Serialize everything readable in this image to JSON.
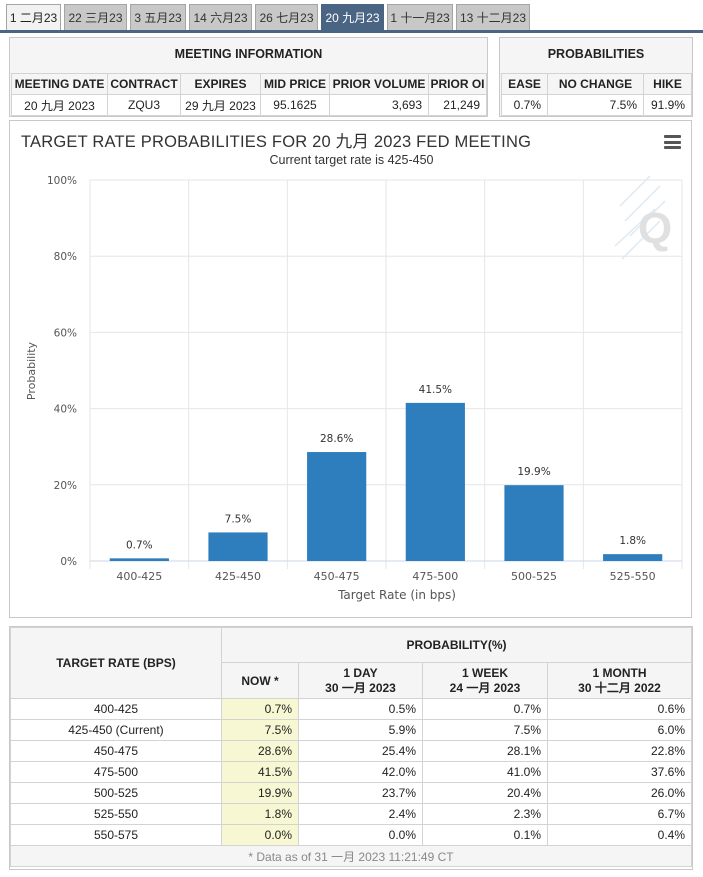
{
  "tabs": [
    {
      "label": "1 二月23"
    },
    {
      "label": "22 三月23"
    },
    {
      "label": "3 五月23"
    },
    {
      "label": "14 六月23"
    },
    {
      "label": "26 七月23"
    },
    {
      "label": "20 九月23"
    },
    {
      "label": "1 十一月23"
    },
    {
      "label": "13 十二月23"
    }
  ],
  "active_tab": "20 九月23",
  "meeting_info": {
    "title": "MEETING INFORMATION",
    "headers": {
      "meeting_date": "MEETING DATE",
      "contract": "CONTRACT",
      "expires": "EXPIRES",
      "mid_price": "MID PRICE",
      "prior_volume": "PRIOR VOLUME",
      "prior_oi": "PRIOR OI"
    },
    "values": {
      "meeting_date": "20 九月 2023",
      "contract": "ZQU3",
      "expires": "29 九月 2023",
      "mid_price": "95.1625",
      "prior_volume": "3,693",
      "prior_oi": "21,249"
    }
  },
  "probabilities": {
    "title": "PROBABILITIES",
    "headers": {
      "ease": "EASE",
      "no_change": "NO CHANGE",
      "hike": "HIKE"
    },
    "values": {
      "ease": "0.7%",
      "no_change": "7.5%",
      "hike": "91.9%"
    }
  },
  "chart_data": {
    "type": "bar",
    "title": "TARGET RATE PROBABILITIES FOR 20 九月 2023 FED MEETING",
    "subtitle": "Current target rate is 425-450",
    "xlabel": "Target Rate (in bps)",
    "ylabel": "Probability",
    "categories": [
      "400-425",
      "425-450",
      "450-475",
      "475-500",
      "500-525",
      "525-550"
    ],
    "values": [
      0.7,
      7.5,
      28.6,
      41.5,
      19.9,
      1.8
    ],
    "data_labels": [
      "0.7%",
      "7.5%",
      "28.6%",
      "41.5%",
      "19.9%",
      "1.8%"
    ],
    "ylim": [
      0,
      100
    ],
    "yticks": [
      0,
      20,
      40,
      60,
      80,
      100
    ],
    "ytick_labels": [
      "0%",
      "20%",
      "40%",
      "60%",
      "80%",
      "100%"
    ],
    "bar_color": "#2e7ebd",
    "grid": true
  },
  "prob_table": {
    "target_header": "TARGET RATE (BPS)",
    "prob_header": "PROBABILITY(%)",
    "columns": [
      {
        "line1": "NOW *",
        "line2": ""
      },
      {
        "line1": "1 DAY",
        "line2": "30 一月 2023"
      },
      {
        "line1": "1 WEEK",
        "line2": "24 一月 2023"
      },
      {
        "line1": "1 MONTH",
        "line2": "30 十二月 2022"
      }
    ],
    "rows": [
      {
        "rate": "400-425",
        "now": "0.7%",
        "day": "0.5%",
        "week": "0.7%",
        "month": "0.6%"
      },
      {
        "rate": "425-450 (Current)",
        "now": "7.5%",
        "day": "5.9%",
        "week": "7.5%",
        "month": "6.0%"
      },
      {
        "rate": "450-475",
        "now": "28.6%",
        "day": "25.4%",
        "week": "28.1%",
        "month": "22.8%"
      },
      {
        "rate": "475-500",
        "now": "41.5%",
        "day": "42.0%",
        "week": "41.0%",
        "month": "37.6%"
      },
      {
        "rate": "500-525",
        "now": "19.9%",
        "day": "23.7%",
        "week": "20.4%",
        "month": "26.0%"
      },
      {
        "rate": "525-550",
        "now": "1.8%",
        "day": "2.4%",
        "week": "2.3%",
        "month": "6.7%"
      },
      {
        "rate": "550-575",
        "now": "0.0%",
        "day": "0.0%",
        "week": "0.1%",
        "month": "0.4%"
      }
    ],
    "footnote": "* Data as of 31 一月 2023 11:21:49 CT"
  }
}
